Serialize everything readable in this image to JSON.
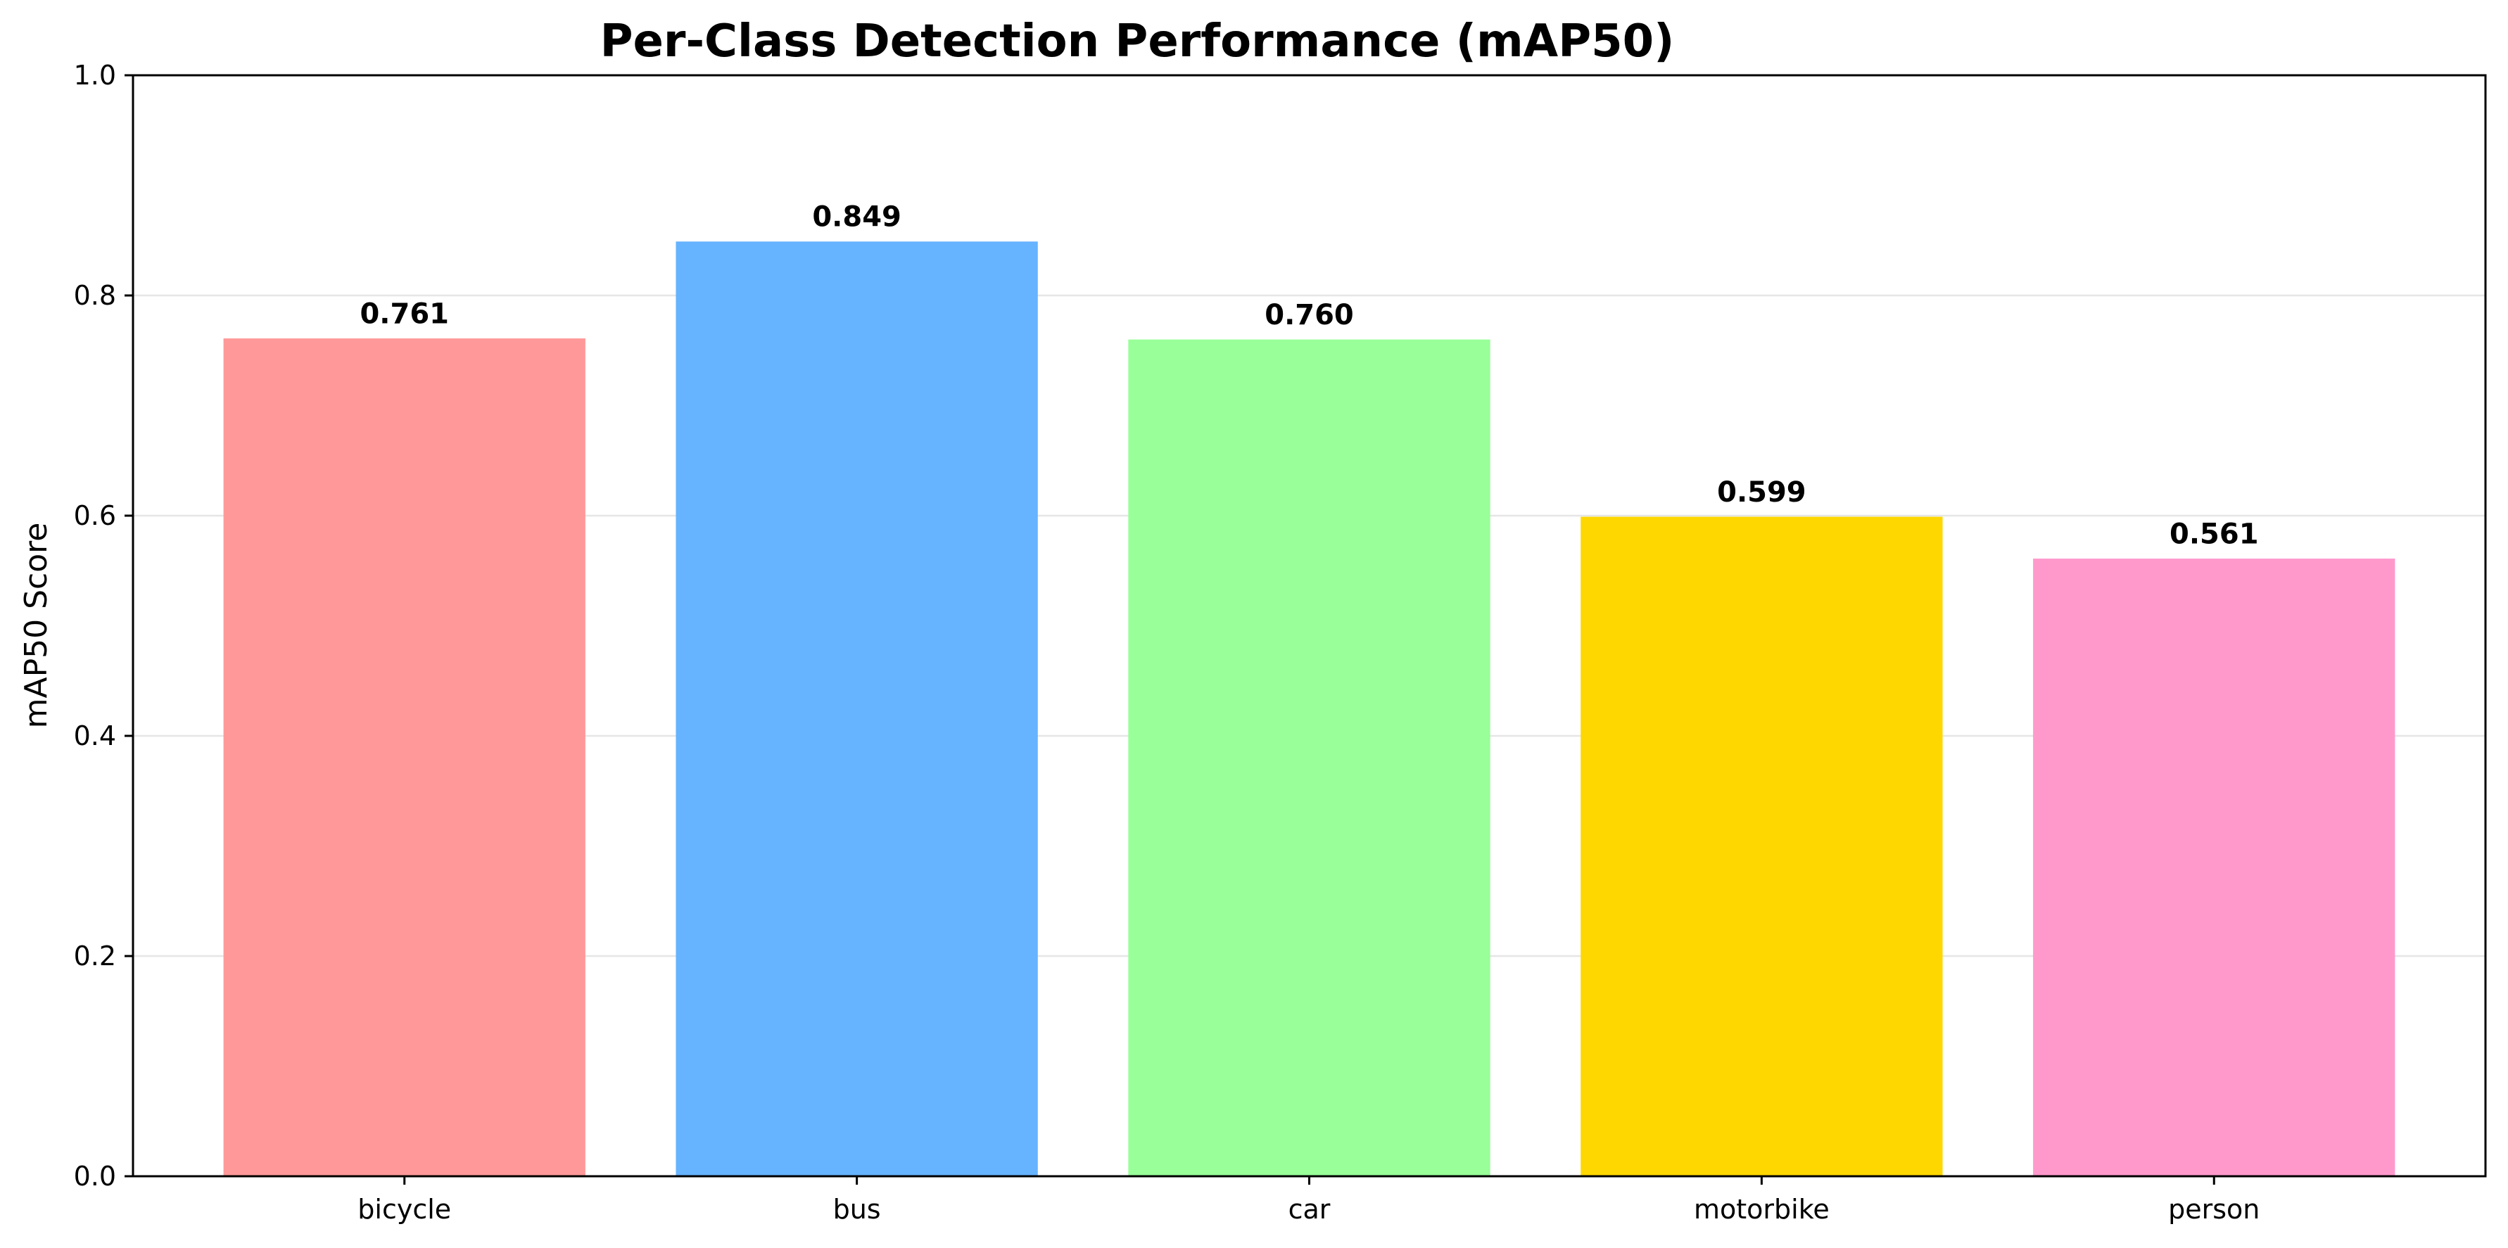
{
  "chart_data": {
    "type": "bar",
    "title": "Per-Class Detection Performance (mAP50)",
    "xlabel": "",
    "ylabel": "mAP50 Score",
    "categories": [
      "bicycle",
      "bus",
      "car",
      "motorbike",
      "person"
    ],
    "values": [
      0.761,
      0.849,
      0.76,
      0.599,
      0.561
    ],
    "value_labels": [
      "0.761",
      "0.849",
      "0.760",
      "0.599",
      "0.561"
    ],
    "colors": [
      "#ff9999",
      "#66b3ff",
      "#99ff99",
      "#ffd700",
      "#ff99cc"
    ],
    "ylim": [
      0,
      1.0
    ],
    "yticks": [
      "0.0",
      "0.2",
      "0.4",
      "0.6",
      "0.8",
      "1.0"
    ],
    "grid": true,
    "grid_axis": "y",
    "legend": "none"
  }
}
